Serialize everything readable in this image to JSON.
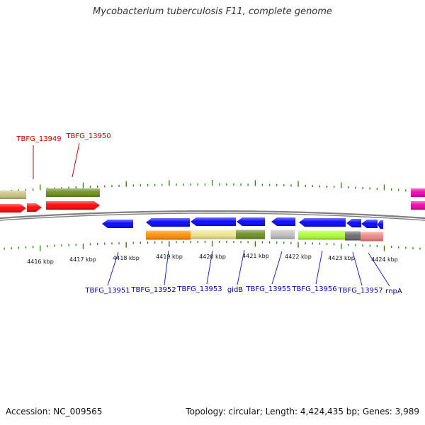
{
  "title": "Mycobacterium tuberculosis F11, complete genome",
  "footer": {
    "accession": "Accession: NC_009565",
    "summary": "Topology: circular; Length: 4,424,435 bp; Genes: 3,989"
  },
  "colors": {
    "backbone": "#808080",
    "tick": "#2a7a0a",
    "upper_label": "#cc0000",
    "lower_label": "#0000aa",
    "leader_red": "#cc0000",
    "leader_blue": "#2222cc"
  },
  "scale": {
    "unit": "kbp",
    "major_labels": [
      "4416 kbp",
      "4417 kbp",
      "4418 kbp",
      "4419 kbp",
      "4420 kbp",
      "4421 kbp",
      "4422 kbp",
      "4423 kbp",
      "4424 kbp"
    ]
  },
  "upper_labels": [
    {
      "text": "TBFG_13949"
    },
    {
      "text": "TBFG_13950"
    }
  ],
  "lower_labels": [
    {
      "text": "TBFG_13951"
    },
    {
      "text": "TBFG_13952"
    },
    {
      "text": "TBFG_13953"
    },
    {
      "text": "gidB"
    },
    {
      "text": "TBFG_13955"
    },
    {
      "text": "TBFG_13956"
    },
    {
      "text": "TBFG_13957"
    },
    {
      "text": "rnpA"
    }
  ],
  "features": {
    "upper_cds": [
      {
        "color": "#ff0000",
        "direction": "forward"
      },
      {
        "color": "#ff0000",
        "direction": "forward"
      },
      {
        "color": "#ff0000",
        "direction": "forward"
      },
      {
        "color": "#ee00aa",
        "direction": "forward"
      }
    ],
    "upper_bars": [
      {
        "color": "#c8c080"
      },
      {
        "color": "#6b8e23"
      },
      {
        "color": "#ee00aa"
      }
    ],
    "lower_cds": [
      {
        "color": "#0000ff",
        "direction": "reverse"
      },
      {
        "color": "#0000ff",
        "direction": "reverse"
      },
      {
        "color": "#0000ff",
        "direction": "reverse"
      },
      {
        "color": "#0000ff",
        "direction": "reverse"
      },
      {
        "color": "#0000ff",
        "direction": "reverse"
      },
      {
        "color": "#0000ff",
        "direction": "reverse"
      },
      {
        "color": "#0000ff",
        "direction": "reverse"
      },
      {
        "color": "#0000ff",
        "direction": "reverse"
      },
      {
        "color": "#0000ff",
        "direction": "reverse"
      }
    ],
    "lower_bars": [
      {
        "color": "#ff8c00"
      },
      {
        "color": "#f0e68c"
      },
      {
        "color": "#6b8e23"
      },
      {
        "color": "#c0c0c0"
      },
      {
        "color": "#adff2f"
      },
      {
        "color": "#696969"
      },
      {
        "color": "#f08080"
      }
    ]
  }
}
